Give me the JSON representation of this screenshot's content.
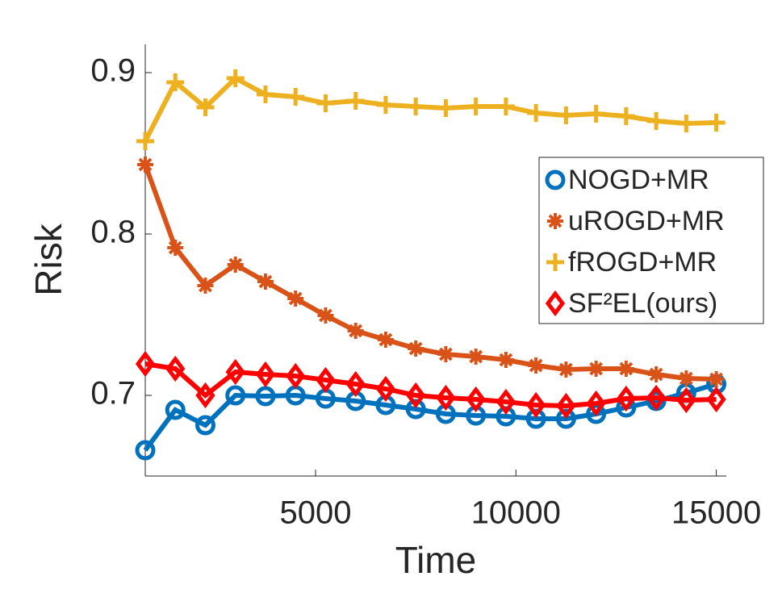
{
  "chart_data": {
    "type": "line",
    "xlabel": "Time",
    "ylabel": "Risk",
    "x": [
      750,
      1500,
      2250,
      3000,
      3750,
      4500,
      5250,
      6000,
      6750,
      7500,
      8250,
      9000,
      9750,
      10500,
      11250,
      12000,
      12750,
      13500,
      14250,
      15000
    ],
    "xlim": [
      750,
      15250
    ],
    "xticks": [
      5000,
      10000,
      15000
    ],
    "ylim": [
      0.65,
      0.9175
    ],
    "yticks": [
      0.7,
      0.8,
      0.9
    ],
    "series": [
      {
        "name": "NOGD+MR",
        "color": "#0072bd",
        "marker": "circle",
        "values": [
          0.666,
          0.691,
          0.6815,
          0.7,
          0.6995,
          0.7,
          0.698,
          0.6965,
          0.694,
          0.6915,
          0.6885,
          0.6875,
          0.687,
          0.6855,
          0.6855,
          0.6885,
          0.6925,
          0.6965,
          0.7015,
          0.707
        ]
      },
      {
        "name": "uROGD+MR",
        "color": "#d95319",
        "marker": "asterisk",
        "values": [
          0.843,
          0.7915,
          0.768,
          0.781,
          0.7705,
          0.76,
          0.7495,
          0.74,
          0.7345,
          0.729,
          0.7255,
          0.724,
          0.722,
          0.7185,
          0.716,
          0.7165,
          0.7165,
          0.713,
          0.7105,
          0.71
        ]
      },
      {
        "name": "fROGD+MR",
        "color": "#edb120",
        "marker": "plus",
        "values": [
          0.8575,
          0.894,
          0.8785,
          0.8965,
          0.8865,
          0.885,
          0.881,
          0.8825,
          0.88,
          0.879,
          0.878,
          0.879,
          0.879,
          0.875,
          0.8735,
          0.8745,
          0.873,
          0.87,
          0.8685,
          0.869
        ]
      },
      {
        "name": "SF²EL(ours)",
        "color": "#ff0000",
        "marker": "diamond",
        "values": [
          0.7195,
          0.7165,
          0.7,
          0.7145,
          0.713,
          0.712,
          0.7095,
          0.707,
          0.704,
          0.7,
          0.6985,
          0.6975,
          0.696,
          0.694,
          0.6935,
          0.695,
          0.698,
          0.6985,
          0.697,
          0.6975
        ]
      }
    ]
  }
}
